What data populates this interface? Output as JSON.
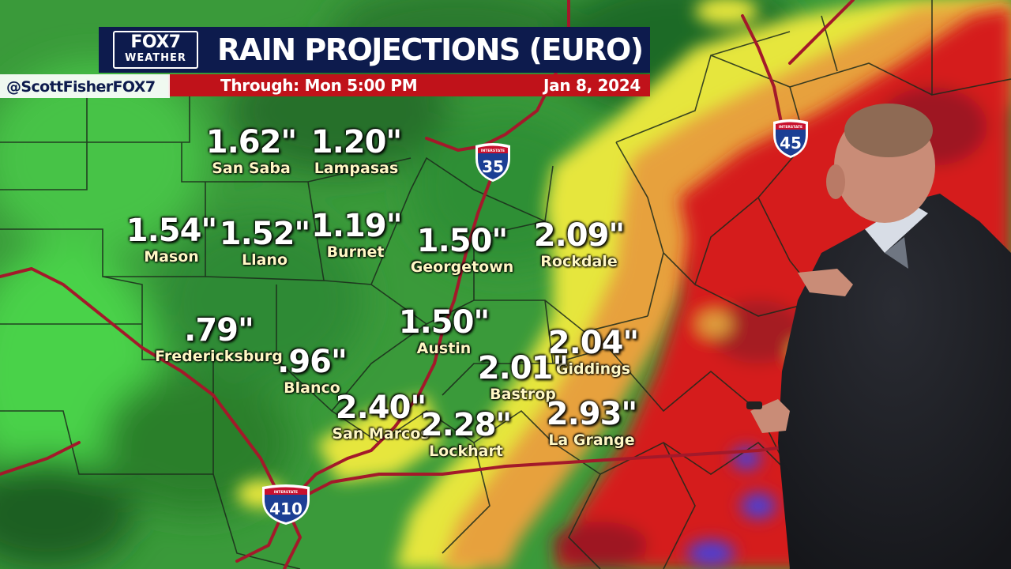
{
  "header": {
    "logo_line1": "FOX7",
    "logo_line2": "WEATHER",
    "title": "RAIN PROJECTIONS (EURO)",
    "through_label": "Through: Mon   5:00 PM",
    "date_label": "Jan 8, 2024",
    "handle": "@ScottFisherFOX7"
  },
  "locations": [
    {
      "amount": "1.62\"",
      "city": "San Saba"
    },
    {
      "amount": "1.20\"",
      "city": "Lampasas"
    },
    {
      "amount": "1.54\"",
      "city": "Mason"
    },
    {
      "amount": "1.52\"",
      "city": "Llano"
    },
    {
      "amount": "1.19\"",
      "city": "Burnet"
    },
    {
      "amount": "1.50\"",
      "city": "Georgetown"
    },
    {
      "amount": "2.09\"",
      "city": "Rockdale"
    },
    {
      "amount": ".79\"",
      "city": "Fredericksburg"
    },
    {
      "amount": ".96\"",
      "city": "Blanco"
    },
    {
      "amount": "1.50\"",
      "city": "Austin"
    },
    {
      "amount": "2.04\"",
      "city": "Giddings"
    },
    {
      "amount": "2.01\"",
      "city": "Bastrop"
    },
    {
      "amount": "2.40\"",
      "city": "San Marcos"
    },
    {
      "amount": "2.28\"",
      "city": "Lockhart"
    },
    {
      "amount": "2.93\"",
      "city": "La Grange"
    }
  ],
  "interstates": [
    {
      "number": "35",
      "top_label": "INTERSTATE"
    },
    {
      "number": "45",
      "top_label": "INTERSTATE"
    },
    {
      "number": "410",
      "top_label": "INTERSTATE"
    }
  ],
  "colors": {
    "light_rain": "#3fbf3a",
    "moderate_rain": "#1f7a2a",
    "heavy_rain": "#e9e940",
    "very_heavy_rain": "#e8a23a",
    "extreme_rain": "#d8221e",
    "highest_rain": "#4a3fd8",
    "highway": "#a3192a",
    "title_bar": "#0d1b4d",
    "sub_bar": "#c0121a"
  }
}
